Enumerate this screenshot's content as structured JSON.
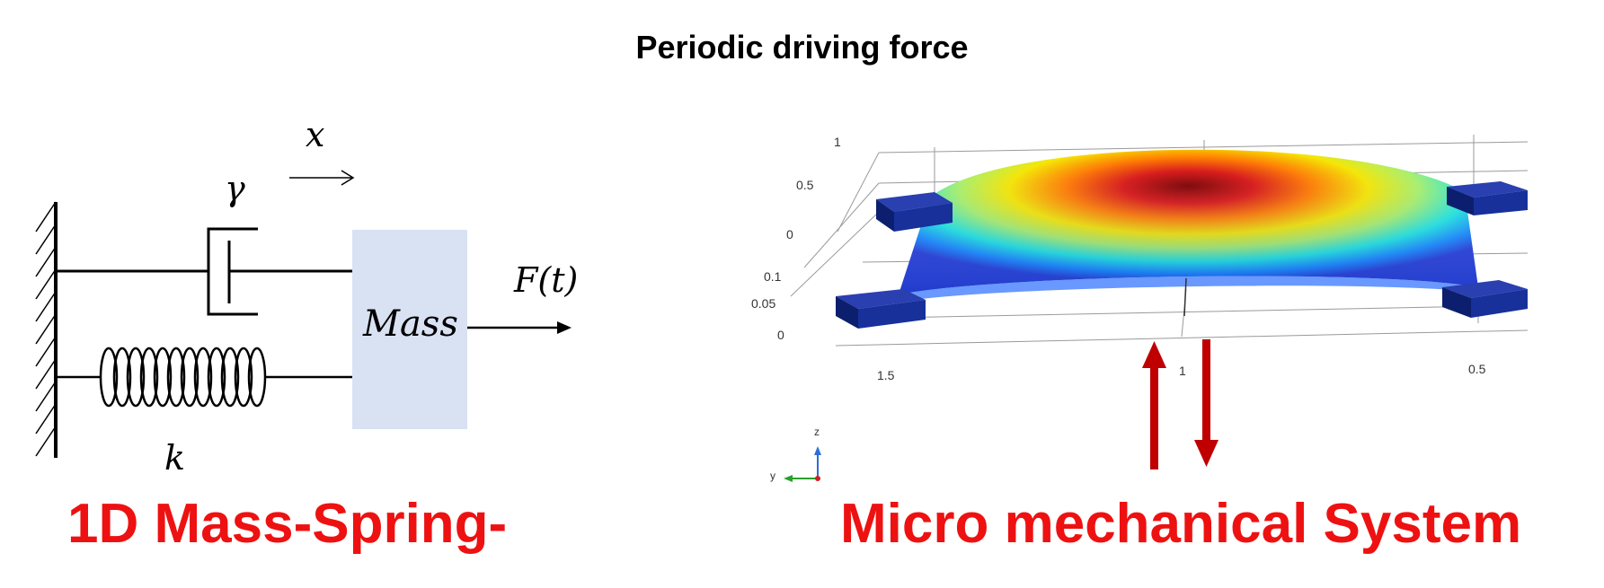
{
  "heading": "Periodic driving force",
  "left_panel": {
    "title": "1D Mass-Spring-",
    "symbols": {
      "displacement": "x",
      "damping": "γ",
      "spring": "k",
      "mass": "Mass",
      "force": "F(t)"
    },
    "colors": {
      "mass_fill": "#d9e2f3",
      "line": "#000000"
    }
  },
  "right_panel": {
    "title": "Micro mechanical System",
    "vertical_axis_ticks": [
      "1",
      "0.5",
      "0",
      "0.1",
      "0.05",
      "0"
    ],
    "horizontal_axis_ticks": [
      "1.5",
      "1",
      "0.5"
    ],
    "axis_triad": {
      "z": "z",
      "y": "y"
    },
    "colors": {
      "anchor": "#0f2a8a",
      "arrow": "#c00000",
      "title": "#ee1111"
    }
  }
}
